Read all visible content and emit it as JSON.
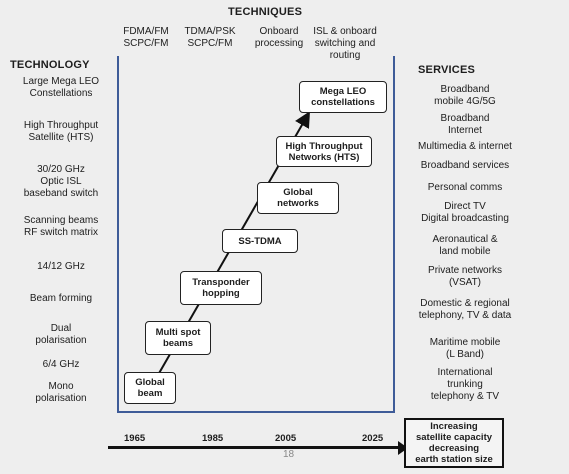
{
  "headings": {
    "techniques": "TECHNIQUES",
    "technology": "TECHNOLOGY",
    "services": "SERVICES"
  },
  "technique_columns": [
    "FDMA/FM\nSCPC/FM",
    "TDMA/PSK\nSCPC/FM",
    "Onboard\nprocessing",
    "ISL & onboard\nswitching and\nrouting"
  ],
  "technology": [
    "Large Mega LEO\nConstellations",
    "High Throughput\nSatellite (HTS)",
    "30/20 GHz\nOptic ISL\nbaseband switch",
    "Scanning beams\nRF switch matrix",
    "14/12 GHz",
    "Beam forming",
    "Dual\npolarisation",
    "6/4 GHz",
    "Mono\npolarisation"
  ],
  "services": [
    "Broadband\nmobile 4G/5G",
    "Broadband\nInternet",
    "Multimedia & internet",
    "Broadband services",
    "Personal comms",
    "Direct TV\nDigital broadcasting",
    "Aeronautical &\nland mobile",
    "Private networks\n(VSAT)",
    "Domestic & regional\ntelephony, TV & data",
    "Maritime mobile\n(L Band)",
    "International\ntrunking\ntelephony & TV"
  ],
  "steps": [
    "Global\nbeam",
    "Multi spot\nbeams",
    "Transponder\nhopping",
    "SS-TDMA",
    "Global\nnetworks",
    "High Throughput\nNetworks (HTS)",
    "Mega LEO\nconstellations"
  ],
  "years": [
    "1965",
    "1985",
    "2005",
    "2025"
  ],
  "result": "Increasing\nsatellite capacity\ndecreasing\nearth station size",
  "page_number": "18"
}
